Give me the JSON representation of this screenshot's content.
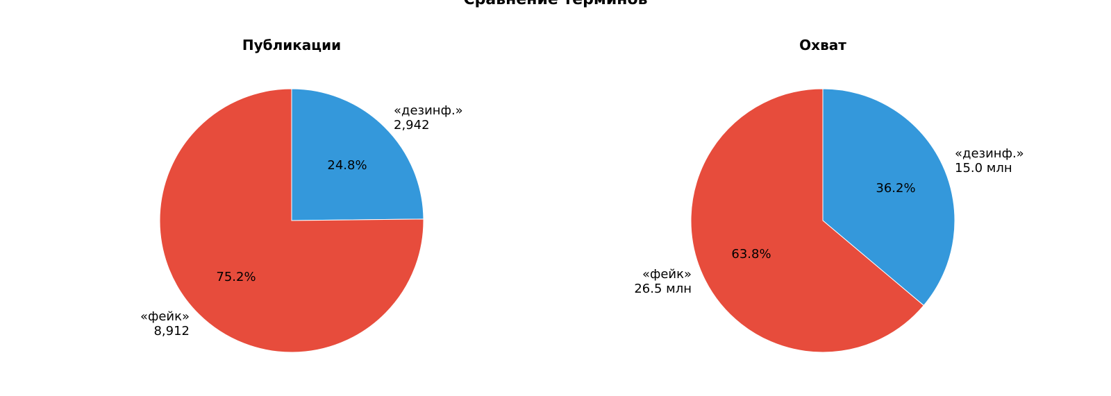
{
  "figure": {
    "title": "Сравнение терминов"
  },
  "chart_data": [
    {
      "type": "pie",
      "title": "Публикации",
      "slices": [
        {
          "name": "«дезинф.»",
          "value_label": "2,942",
          "value": 2942,
          "percent": 24.8,
          "percent_label": "24.8%",
          "color": "#3498db"
        },
        {
          "name": "«фейк»",
          "value_label": "8,912",
          "value": 8912,
          "percent": 75.2,
          "percent_label": "75.2%",
          "color": "#e74c3c"
        }
      ]
    },
    {
      "type": "pie",
      "title": "Охват",
      "slices": [
        {
          "name": "«дезинф.»",
          "value_label": "15.0 млн",
          "value": 15.0,
          "percent": 36.2,
          "percent_label": "36.2%",
          "color": "#3498db"
        },
        {
          "name": "«фейк»",
          "value_label": "26.5 млн",
          "value": 26.5,
          "percent": 63.8,
          "percent_label": "63.8%",
          "color": "#e74c3c"
        }
      ]
    }
  ]
}
